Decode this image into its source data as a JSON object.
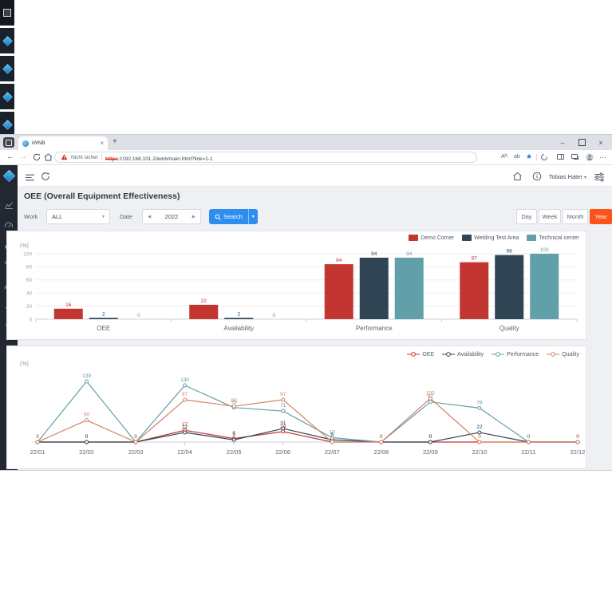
{
  "taskbar": {
    "tile_count": 5
  },
  "browser": {
    "tab": {
      "title": "iWNB",
      "close_glyph": "×",
      "new_tab_glyph": "+"
    },
    "window_controls": {
      "minimize_glyph": "–",
      "close_glyph": "×"
    },
    "nav": {
      "back_glyph": "←",
      "forward_glyph": "→"
    },
    "address": {
      "warning_text": "Nicht sicher",
      "protocol": "https",
      "url_rest": "://192.168.101.2/iwnb/main.html?link=1-1"
    },
    "toolbar": {
      "read_aloud_glyph": "Aᴺ",
      "translate_glyph": "ab",
      "favorite_star_glyph": "★",
      "more_glyph": "⋯"
    }
  },
  "app": {
    "header": {
      "user_name": "Tobias Hater",
      "user_caret": "▾"
    },
    "page_title": "OEE (Overall Equipment Effectiveness)",
    "filters": {
      "work_label": "Work",
      "work_value": "ALL",
      "work_caret": "▾",
      "date_label": "Date",
      "date_prev_glyph": "◀",
      "date_next_glyph": "▶",
      "date_value": "2022",
      "search_label": "Search",
      "search_caret": "▾",
      "ranges": [
        "Day",
        "Week",
        "Month",
        "Year"
      ],
      "active_range": "Year"
    }
  },
  "theme": {
    "accent_blue": "#2e8df0",
    "accent_orange": "#fa541c"
  },
  "chart_data": [
    {
      "type": "bar",
      "unit_label": "(%)",
      "categories": [
        "OEE",
        "Availability",
        "Performance",
        "Quality"
      ],
      "series": [
        {
          "name": "Demo Corner",
          "color": "#c23531",
          "values": [
            16,
            22,
            84,
            87
          ]
        },
        {
          "name": "Welding Test Area",
          "color": "#2f4554",
          "values": [
            2,
            2,
            94,
            98
          ]
        },
        {
          "name": "Technical center",
          "color": "#61a0a8",
          "values": [
            0,
            0,
            94,
            100
          ]
        }
      ],
      "ylim": [
        0,
        100
      ],
      "yticks": [
        0,
        20,
        40,
        60,
        80,
        100
      ],
      "grid": true,
      "legend_position": "top-right"
    },
    {
      "type": "line",
      "unit_label": "(%)",
      "x": [
        "22/01",
        "22/02",
        "22/03",
        "22/04",
        "22/05",
        "22/06",
        "22/07",
        "22/08",
        "22/09",
        "22/10",
        "22/11",
        "22/12"
      ],
      "series": [
        {
          "name": "OEE",
          "color": "#c23531",
          "values": [
            0,
            0,
            0,
            27,
            8,
            24,
            0,
            0,
            0,
            0,
            0,
            0
          ]
        },
        {
          "name": "Availability",
          "color": "#2f4554",
          "values": [
            0,
            0,
            0,
            22,
            5,
            31,
            5,
            0,
            0,
            22,
            0,
            0
          ]
        },
        {
          "name": "Performance",
          "color": "#61a0a8",
          "values": [
            0,
            139,
            0,
            130,
            79,
            71,
            10,
            0,
            92,
            78,
            0,
            0
          ]
        },
        {
          "name": "Quality",
          "color": "#d48265",
          "values": [
            0,
            50,
            0,
            97,
            82,
            97,
            0,
            0,
            100,
            0,
            0,
            0
          ]
        }
      ],
      "ylim": [
        0,
        150
      ],
      "grid": false,
      "legend_position": "top-right"
    }
  ]
}
